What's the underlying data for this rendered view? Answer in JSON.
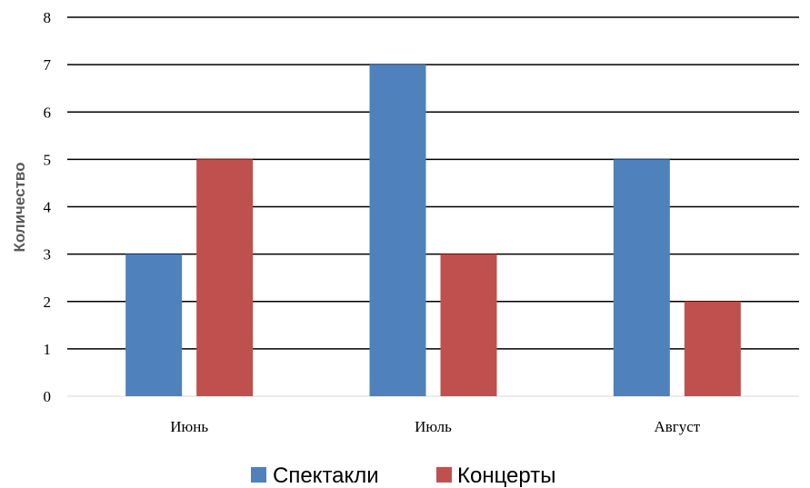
{
  "chart_data": {
    "type": "bar",
    "categories": [
      "Июнь",
      "Июль",
      "Август"
    ],
    "series": [
      {
        "name": "Спектакли",
        "values": [
          3,
          7,
          5
        ],
        "color": "#4f81bd"
      },
      {
        "name": "Концерты",
        "values": [
          5,
          3,
          2
        ],
        "color": "#c0504d"
      }
    ],
    "ylabel": "Количество",
    "ylim": [
      0,
      8
    ],
    "yticks": [
      "0",
      "1",
      "2",
      "3",
      "4",
      "5",
      "6",
      "7",
      "8"
    ],
    "grid": true,
    "legend": "bottom"
  }
}
